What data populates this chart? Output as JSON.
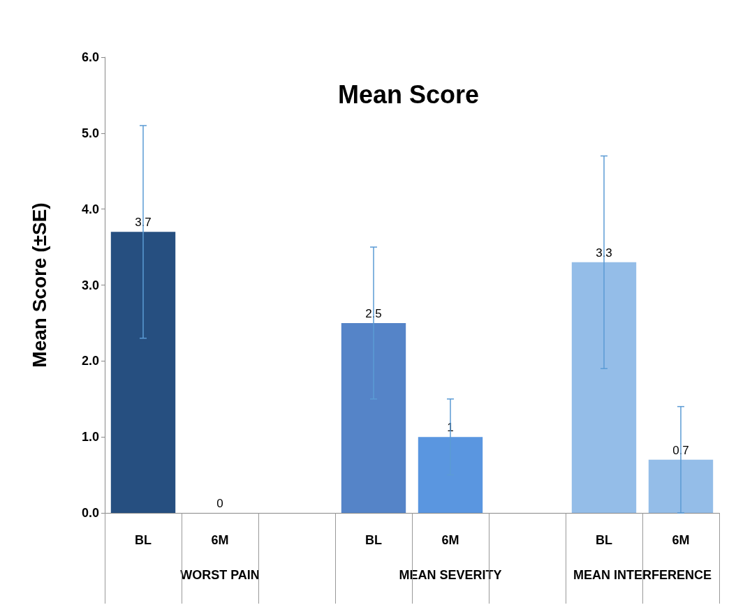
{
  "chart_data": {
    "type": "bar",
    "title": "Mean Score",
    "ylabel": "Mean Score (±SE)",
    "categories": [
      "BL",
      "6M",
      null,
      "BL",
      "6M",
      null,
      "BL",
      "6M"
    ],
    "values": [
      3.7,
      0,
      null,
      2.5,
      1,
      null,
      3.3,
      0.7
    ],
    "colors": [
      "#264f80",
      "#264f80",
      null,
      "#5584c8",
      "#5a96e0",
      null,
      "#94bde8",
      "#94bde8"
    ],
    "errors": [
      1.4,
      null,
      null,
      1,
      0.5,
      null,
      1.4,
      0.7
    ],
    "annotations": [
      "WORST PAIN",
      "MEAN SEVERITY",
      "MEAN INTERFERENCE"
    ],
    "ylim": [
      0,
      6
    ],
    "yticks": [
      {
        "value": 0,
        "label": "0.0"
      },
      {
        "value": 1,
        "label": "1.0"
      },
      {
        "value": 2,
        "label": "2.0"
      },
      {
        "value": 3,
        "label": "3.0"
      },
      {
        "value": 4,
        "label": "4.0"
      },
      {
        "value": 5,
        "label": "5.0"
      },
      {
        "value": 6,
        "label": "6.0"
      }
    ],
    "data_labels": true,
    "grid": false
  }
}
